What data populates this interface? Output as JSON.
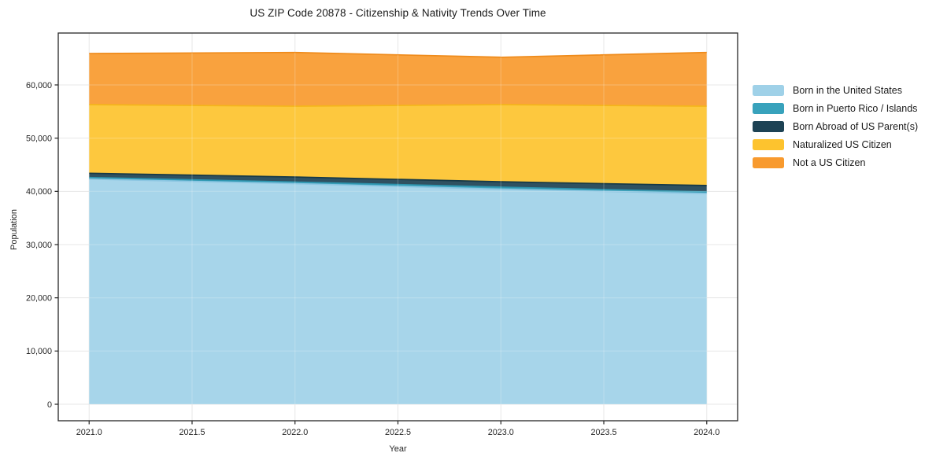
{
  "chart_data": {
    "type": "area",
    "stacked": true,
    "title": "US ZIP Code 20878 - Citizenship & Nativity Trends Over Time",
    "xlabel": "Year",
    "ylabel": "Population",
    "x": [
      2021,
      2022,
      2023,
      2024
    ],
    "series": [
      {
        "name": "Born in the United States",
        "color": "#9fd1e8",
        "edge": "#8cc6e2",
        "values": [
          42300,
          41450,
          40400,
          39600
        ]
      },
      {
        "name": "Born in Puerto Rico / Islands",
        "color": "#38a2bc",
        "edge": "#2e96b0",
        "values": [
          300,
          300,
          400,
          300
        ]
      },
      {
        "name": "Born Abroad of US Parent(s)",
        "color": "#1d4254",
        "edge": "#163947",
        "values": [
          800,
          950,
          1000,
          1200
        ]
      },
      {
        "name": "Naturalized US Citizen",
        "color": "#fdc32e",
        "edge": "#f4b51b",
        "values": [
          12900,
          13300,
          14500,
          14900
        ]
      },
      {
        "name": "Not a US Citizen",
        "color": "#f89a2e",
        "edge": "#ef8b1b",
        "values": [
          9600,
          10100,
          8900,
          10100
        ]
      }
    ],
    "xticks": {
      "values": [
        2021.0,
        2021.5,
        2022.0,
        2022.5,
        2023.0,
        2023.5,
        2024.0
      ],
      "labels": [
        "2021.0",
        "2021.5",
        "2022.0",
        "2022.5",
        "2023.0",
        "2023.5",
        "2024.0"
      ]
    },
    "yticks": {
      "values": [
        0,
        10000,
        20000,
        30000,
        40000,
        50000,
        60000
      ],
      "labels": [
        "0",
        "10,000",
        "20,000",
        "30,000",
        "40,000",
        "50,000",
        "60,000"
      ]
    },
    "xlim": [
      2020.85,
      2024.15
    ],
    "ylim": [
      -3100,
      69750
    ],
    "grid": true,
    "legend_position": "right-outside",
    "frame_color": "#262626",
    "grid_color": "#e7e7e7",
    "tick_label_color": "#262626"
  }
}
